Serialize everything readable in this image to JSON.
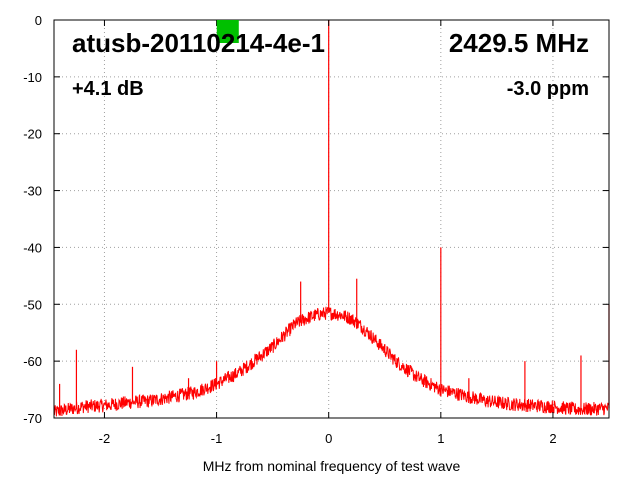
{
  "chart_data": {
    "type": "line",
    "title": "atusb-20110214-4e-1",
    "frequency_label": "2429.5 MHz",
    "gain_label": "+4.1 dB",
    "ppm_label": "-3.0 ppm",
    "xlabel": "MHz from nominal frequency of test wave",
    "ylabel": "",
    "xlim": [
      -2.45,
      2.5
    ],
    "ylim": [
      -70,
      0
    ],
    "x_ticks": [
      -2,
      -1,
      0,
      1,
      2
    ],
    "y_ticks": [
      0,
      -10,
      -20,
      -30,
      -40,
      -50,
      -60,
      -70
    ],
    "grid": true,
    "grid_style": "dotted",
    "series_color": "#ff0000",
    "marker_color": "#00c000",
    "marker_x": -0.9,
    "series": [
      {
        "name": "",
        "noise_floor": {
          "x": [
            -2.45,
            -2.2,
            -2.0,
            -1.8,
            -1.6,
            -1.4,
            -1.2,
            -1.0,
            -0.8,
            -0.6,
            -0.5,
            -0.4,
            -0.3,
            -0.2,
            -0.1,
            0.0,
            0.1,
            0.2,
            0.3,
            0.4,
            0.5,
            0.6,
            0.8,
            1.0,
            1.2,
            1.4,
            1.6,
            1.8,
            2.0,
            2.2,
            2.5
          ],
          "y": [
            -69,
            -68,
            -67.8,
            -67.3,
            -67,
            -66.3,
            -65.5,
            -64,
            -62,
            -59,
            -57.5,
            -55.5,
            -53.5,
            -52.5,
            -51.8,
            -51.5,
            -51.8,
            -52.5,
            -54,
            -56,
            -58,
            -60,
            -63,
            -65,
            -66,
            -67,
            -67.5,
            -67.8,
            -68,
            -68.5,
            -68.3
          ]
        },
        "spurs": [
          {
            "x": 0.0,
            "y": 0
          },
          {
            "x": -0.25,
            "y": -46
          },
          {
            "x": 0.25,
            "y": -45.5
          },
          {
            "x": 1.0,
            "y": -40
          },
          {
            "x": -2.25,
            "y": -58
          },
          {
            "x": -1.75,
            "y": -61
          },
          {
            "x": -1.25,
            "y": -63
          },
          {
            "x": -1.0,
            "y": -60
          },
          {
            "x": -2.4,
            "y": -64
          },
          {
            "x": 0.5,
            "y": -57
          },
          {
            "x": 1.25,
            "y": -63
          },
          {
            "x": 1.75,
            "y": -60
          },
          {
            "x": 2.25,
            "y": -59
          },
          {
            "x": 2.5,
            "y": -50
          }
        ]
      }
    ]
  }
}
